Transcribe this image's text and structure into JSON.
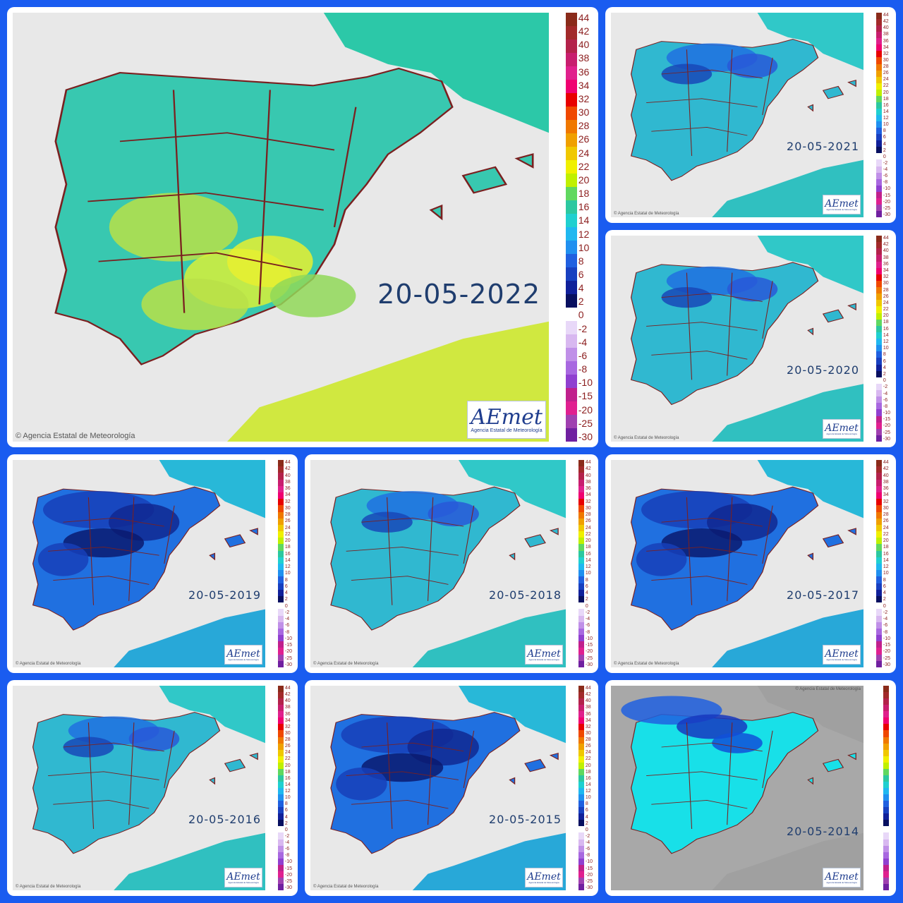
{
  "collage_title": "",
  "copyright": "Agencia Estatal de Meteorología",
  "logo_text": "AEmet",
  "logo_subtext": "Agencia Estatal de Meteorología",
  "legend": {
    "labels": [
      "44",
      "42",
      "40",
      "38",
      "36",
      "34",
      "32",
      "30",
      "28",
      "26",
      "24",
      "22",
      "20",
      "18",
      "16",
      "14",
      "12",
      "10",
      "8",
      "6",
      "4",
      "2",
      "0",
      "-2",
      "-4",
      "-6",
      "-8",
      "-10",
      "-15",
      "-20",
      "-25",
      "-30"
    ],
    "colors": [
      "#8a2b1a",
      "#a22a2a",
      "#b3224a",
      "#c81e6e",
      "#e0208c",
      "#f00070",
      "#e80000",
      "#f04800",
      "#f07800",
      "#f0a000",
      "#f0c800",
      "#f0f000",
      "#c0f000",
      "#60d860",
      "#2cc8a0",
      "#20d0d0",
      "#20b8f0",
      "#2090f0",
      "#2060e0",
      "#1840c0",
      "#10209a",
      "#081060",
      "#ffffff",
      "#e8d8f8",
      "#d8b8f0",
      "#c090e8",
      "#a868e0",
      "#9040d0",
      "#c0208c",
      "#e02090",
      "#a040b0",
      "#7020a0"
    ]
  },
  "maps": [
    {
      "id": "2022",
      "date": "20-05-2022",
      "palette": "warm"
    },
    {
      "id": "2021",
      "date": "20-05-2021",
      "palette": "cool"
    },
    {
      "id": "2020",
      "date": "20-05-2020",
      "palette": "cool"
    },
    {
      "id": "2019",
      "date": "20-05-2019",
      "palette": "cold"
    },
    {
      "id": "2018",
      "date": "20-05-2018",
      "palette": "cool"
    },
    {
      "id": "2017",
      "date": "20-05-2017",
      "palette": "cold"
    },
    {
      "id": "2016",
      "date": "20-05-2016",
      "palette": "cool"
    },
    {
      "id": "2015",
      "date": "20-05-2015",
      "palette": "cold"
    },
    {
      "id": "2014",
      "date": "20-05-2014",
      "palette": "cyan"
    }
  ]
}
